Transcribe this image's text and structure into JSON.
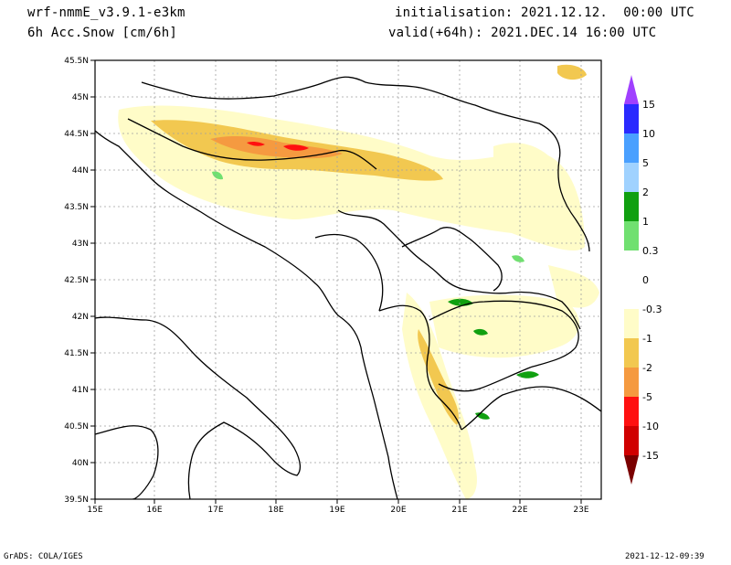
{
  "header": {
    "model": "wrf-nmmE_v3.9.1-e3km",
    "field": "6h Acc.Snow [cm/6h]",
    "initialisation": "initialisation: 2021.12.12.  00:00 UTC",
    "valid": "valid(+64h): 2021.DEC.14 16:00 UTC"
  },
  "footer": {
    "left": "GrADS: COLA/IGES",
    "right": "2021-12-12-09:39"
  },
  "map": {
    "lon_ticks": [
      "15E",
      "16E",
      "17E",
      "18E",
      "19E",
      "20E",
      "21E",
      "22E",
      "23E"
    ],
    "lat_ticks": [
      "45.5N",
      "45N",
      "44.5N",
      "44N",
      "43.5N",
      "43N",
      "42.5N",
      "42N",
      "41.5N",
      "41N",
      "40.5N",
      "40N",
      "39.5N"
    ],
    "grid": true
  },
  "colorbar": {
    "labels": [
      "15",
      "10",
      "5",
      "2",
      "1",
      "0.3",
      "0",
      "-0.3",
      "-1",
      "-2",
      "-5",
      "-10",
      "-15"
    ],
    "colors": [
      "#2a2aff",
      "#4aa0ff",
      "#a0d2ff",
      "#10a010",
      "#70e070",
      "#ffffff",
      "#ffffff",
      "#fffcc8",
      "#f2c850",
      "#f59a40",
      "#ff1010",
      "#d00000",
      "#9a0000"
    ],
    "top_arrow_color": "#a040ff",
    "bottom_arrow_color": "#7a0000"
  }
}
